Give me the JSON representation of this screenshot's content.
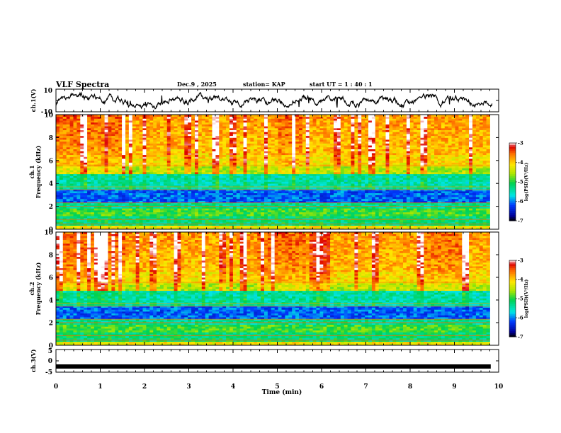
{
  "header": {
    "title": "VLF Spectra",
    "date": "Dec.9 , 2025",
    "station": "station= KAP",
    "start_ut": "start UT = 1 : 40 : 1"
  },
  "chart_data": [
    {
      "type": "line",
      "name": "ch1-waveform",
      "ylabel": "ch.1(V)",
      "ylim": [
        -10,
        10
      ],
      "yticks": [
        "10",
        "-10"
      ],
      "xlim": [
        0,
        10
      ],
      "color": "#000000"
    },
    {
      "type": "heatmap",
      "name": "ch1-spectrogram",
      "ylabel_line1": "ch.1",
      "ylabel_line2": "Frequency (kHz)",
      "ylim": [
        0,
        10
      ],
      "yticks": [
        "0",
        "2",
        "4",
        "6",
        "8",
        "10"
      ],
      "xlim": [
        0,
        9.8
      ],
      "colorbar": {
        "label": "log(PSD)(V²/Hz)",
        "range": [
          -7,
          -3
        ],
        "ticks": [
          "-3",
          "-4",
          "-5",
          "-6",
          "-7"
        ]
      }
    },
    {
      "type": "heatmap",
      "name": "ch2-spectrogram",
      "ylabel_line1": "ch.2",
      "ylabel_line2": "Frequency (kHz)",
      "ylim": [
        0,
        10
      ],
      "yticks": [
        "0",
        "2",
        "4",
        "6",
        "8",
        "10"
      ],
      "xlim": [
        0,
        9.8
      ],
      "colorbar": {
        "label": "log(PSD)(V²/Hz)",
        "range": [
          -7,
          -3
        ],
        "ticks": [
          "-3",
          "-4",
          "-5",
          "-6",
          "-7"
        ]
      }
    },
    {
      "type": "line",
      "name": "ch3-waveform",
      "ylabel": "ch.3(V)",
      "ylim": [
        -5,
        5
      ],
      "yticks": [
        "5",
        "0",
        "-5"
      ],
      "xlim": [
        0,
        10
      ],
      "level": -2.5,
      "color": "#000000"
    }
  ],
  "xaxis": {
    "label": "Time (min)",
    "ticks": [
      "0",
      "1",
      "2",
      "3",
      "4",
      "5",
      "6",
      "7",
      "8",
      "9",
      "10"
    ],
    "range": [
      0,
      10
    ]
  }
}
